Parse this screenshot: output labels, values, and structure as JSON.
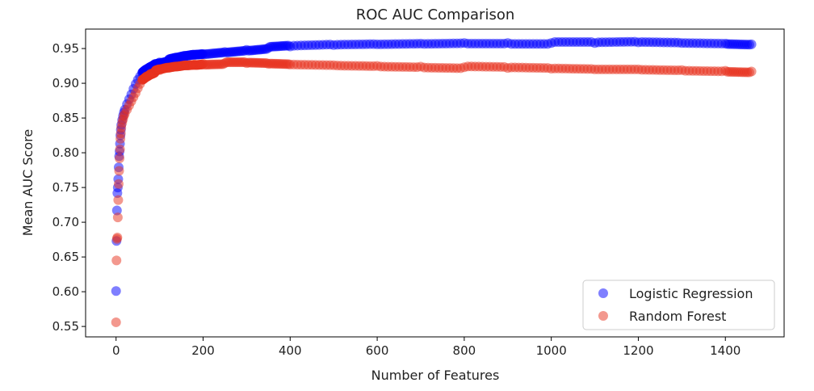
{
  "chart_data": {
    "type": "scatter",
    "title": "ROC AUC Comparison",
    "xlabel": "Number of Features",
    "ylabel": "Mean AUC Score",
    "xlim": [
      -70,
      1535
    ],
    "ylim": [
      0.535,
      0.978
    ],
    "xticks": [
      0,
      200,
      400,
      600,
      800,
      1000,
      1200,
      1400
    ],
    "xtick_labels": [
      "0",
      "200",
      "400",
      "600",
      "800",
      "1000",
      "1200",
      "1400"
    ],
    "yticks": [
      0.55,
      0.6,
      0.65,
      0.7,
      0.75,
      0.8,
      0.85,
      0.9,
      0.95
    ],
    "ytick_labels": [
      "0.55",
      "0.60",
      "0.65",
      "0.70",
      "0.75",
      "0.80",
      "0.85",
      "0.90",
      "0.95"
    ],
    "grid": false,
    "legend_position": "lower-right",
    "series": [
      {
        "name": "Logistic Regression",
        "color": "#0000ff",
        "alpha": 0.5,
        "points": [
          [
            0,
            0.601
          ],
          [
            1,
            0.673
          ],
          [
            2,
            0.717
          ],
          [
            3,
            0.742
          ],
          [
            4,
            0.75
          ],
          [
            5,
            0.762
          ],
          [
            6,
            0.779
          ],
          [
            7,
            0.795
          ],
          [
            8,
            0.802
          ],
          [
            9,
            0.813
          ],
          [
            10,
            0.825
          ],
          [
            11,
            0.833
          ],
          [
            12,
            0.84
          ],
          [
            14,
            0.847
          ],
          [
            16,
            0.853
          ],
          [
            18,
            0.858
          ],
          [
            20,
            0.862
          ],
          [
            25,
            0.87
          ],
          [
            30,
            0.877
          ],
          [
            35,
            0.884
          ],
          [
            40,
            0.892
          ],
          [
            45,
            0.899
          ],
          [
            50,
            0.905
          ],
          [
            55,
            0.91
          ],
          [
            60,
            0.915
          ],
          [
            70,
            0.92
          ],
          [
            80,
            0.924
          ],
          [
            90,
            0.928
          ],
          [
            100,
            0.93
          ],
          [
            120,
            0.933
          ],
          [
            140,
            0.936
          ],
          [
            160,
            0.939
          ],
          [
            180,
            0.941
          ],
          [
            200,
            0.942
          ],
          [
            250,
            0.945
          ],
          [
            300,
            0.948
          ],
          [
            350,
            0.951
          ],
          [
            400,
            0.953
          ],
          [
            500,
            0.955
          ],
          [
            600,
            0.956
          ],
          [
            700,
            0.957
          ],
          [
            800,
            0.958
          ],
          [
            900,
            0.958
          ],
          [
            1000,
            0.958
          ],
          [
            1100,
            0.958
          ],
          [
            1200,
            0.959
          ],
          [
            1300,
            0.958
          ],
          [
            1400,
            0.957
          ],
          [
            1460,
            0.956
          ]
        ]
      },
      {
        "name": "Random Forest",
        "color": "#e8321e",
        "alpha": 0.5,
        "points": [
          [
            0,
            0.556
          ],
          [
            1,
            0.645
          ],
          [
            2,
            0.676
          ],
          [
            3,
            0.678
          ],
          [
            4,
            0.707
          ],
          [
            5,
            0.732
          ],
          [
            6,
            0.755
          ],
          [
            7,
            0.774
          ],
          [
            8,
            0.792
          ],
          [
            9,
            0.805
          ],
          [
            10,
            0.82
          ],
          [
            11,
            0.828
          ],
          [
            12,
            0.836
          ],
          [
            14,
            0.843
          ],
          [
            16,
            0.848
          ],
          [
            18,
            0.853
          ],
          [
            20,
            0.856
          ],
          [
            25,
            0.862
          ],
          [
            30,
            0.868
          ],
          [
            35,
            0.874
          ],
          [
            40,
            0.88
          ],
          [
            45,
            0.886
          ],
          [
            50,
            0.893
          ],
          [
            55,
            0.899
          ],
          [
            60,
            0.905
          ],
          [
            70,
            0.91
          ],
          [
            80,
            0.914
          ],
          [
            90,
            0.917
          ],
          [
            100,
            0.919
          ],
          [
            120,
            0.922
          ],
          [
            140,
            0.924
          ],
          [
            160,
            0.926
          ],
          [
            180,
            0.927
          ],
          [
            200,
            0.928
          ],
          [
            250,
            0.929
          ],
          [
            300,
            0.929
          ],
          [
            350,
            0.928
          ],
          [
            400,
            0.927
          ],
          [
            500,
            0.926
          ],
          [
            600,
            0.925
          ],
          [
            700,
            0.924
          ],
          [
            800,
            0.923
          ],
          [
            900,
            0.922
          ],
          [
            1000,
            0.921
          ],
          [
            1100,
            0.92
          ],
          [
            1200,
            0.92
          ],
          [
            1300,
            0.919
          ],
          [
            1400,
            0.918
          ],
          [
            1460,
            0.917
          ]
        ]
      }
    ]
  }
}
